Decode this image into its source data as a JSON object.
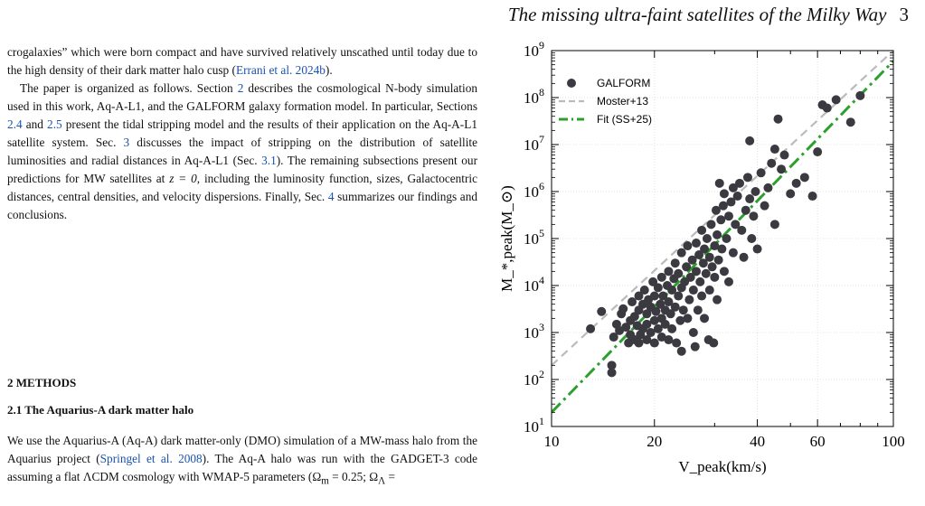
{
  "header": {
    "title": "The missing ultra-faint satellites of the Milky Way",
    "page": "3"
  },
  "text": {
    "p1_parts": [
      "crogalaxies” which were born compact and have survived relatively unscathed until today due to the high density of their dark matter halo cusp (",
      "Errani et al. 2024b",
      ")."
    ],
    "p2_parts": [
      "The paper is organized as follows. Section ",
      "2",
      " describes the cosmological N-body simulation used in this work, Aq-A-L1, and the GALFORM galaxy formation model. In particular, Sections ",
      "2.4",
      " and ",
      "2.5",
      " present the tidal stripping model and the results of their application on the Aq-A-L1 satellite system. Sec. ",
      "3",
      " discusses the impact of stripping on the distribution of satellite luminosities and radial distances in Aq-A-L1 (Sec. ",
      "3.1",
      "). The remaining subsections present our predictions for MW satellites at ",
      "z = 0",
      ", including the luminosity function, sizes, Galactocentric distances, central densities, and velocity dispersions. Finally, Sec. ",
      "4",
      " summarizes our findings and conclusions."
    ],
    "section_heading": "2 METHODS",
    "subsection_heading": "2.1 The Aquarius-A dark matter halo",
    "p3_parts": [
      "We use the Aquarius-A (Aq-A) dark matter-only (DMO) simulation of a MW-mass halo from the Aquarius project (",
      "Springel et al. 2008",
      "). The Aq-A halo was run with the GADGET-3 code assuming a flat ΛCDM cosmology with WMAP-5 parameters (Ω",
      "m",
      " = 0.25; Ω",
      "Λ",
      " ="
    ]
  },
  "chart_data": {
    "type": "scatter",
    "xlabel": "V_peak(km/s)",
    "ylabel": "M_*,peak(M_⊙)",
    "xscale": "log",
    "yscale": "log",
    "xlim": [
      10,
      100
    ],
    "ylim": [
      10,
      1000000000
    ],
    "x_ticks": [
      10,
      20,
      40,
      60,
      100
    ],
    "y_ticks_exp": [
      1,
      2,
      3,
      4,
      5,
      6,
      7,
      8,
      9
    ],
    "grid": true,
    "legend_position": "top-left",
    "colors": {
      "points": "#3a3a40",
      "moster": "#bbbbbb",
      "fit": "#2ca02c"
    },
    "series": [
      {
        "name": "GALFORM",
        "kind": "points",
        "points": [
          [
            13.0,
            1200
          ],
          [
            14.0,
            2800
          ],
          [
            15.0,
            200
          ],
          [
            15.0,
            140
          ],
          [
            15.2,
            800
          ],
          [
            15.5,
            1500
          ],
          [
            15.8,
            1100
          ],
          [
            16.0,
            2500
          ],
          [
            16.2,
            3200
          ],
          [
            16.5,
            1300
          ],
          [
            16.8,
            600
          ],
          [
            17.0,
            900
          ],
          [
            17.0,
            1800
          ],
          [
            17.2,
            4500
          ],
          [
            17.5,
            700
          ],
          [
            17.5,
            2200
          ],
          [
            17.8,
            1400
          ],
          [
            18.0,
            600
          ],
          [
            18.0,
            3000
          ],
          [
            18.0,
            6000
          ],
          [
            18.2,
            900
          ],
          [
            18.5,
            1200
          ],
          [
            18.5,
            4000
          ],
          [
            18.7,
            8000
          ],
          [
            19.0,
            700
          ],
          [
            19.0,
            1500
          ],
          [
            19.0,
            2500
          ],
          [
            19.2,
            5000
          ],
          [
            19.5,
            1000
          ],
          [
            19.5,
            3500
          ],
          [
            19.8,
            12000
          ],
          [
            20.0,
            600
          ],
          [
            20.0,
            1800
          ],
          [
            20.0,
            6000
          ],
          [
            20.2,
            2800
          ],
          [
            20.5,
            1200
          ],
          [
            20.5,
            9000
          ],
          [
            20.8,
            4000
          ],
          [
            21.0,
            800
          ],
          [
            21.0,
            2000
          ],
          [
            21.0,
            15000
          ],
          [
            21.2,
            6000
          ],
          [
            21.5,
            1500
          ],
          [
            21.5,
            3000
          ],
          [
            21.8,
            10000
          ],
          [
            22.0,
            700
          ],
          [
            22.0,
            4500
          ],
          [
            22.0,
            20000
          ],
          [
            22.3,
            2500
          ],
          [
            22.5,
            8000
          ],
          [
            22.5,
            1200
          ],
          [
            22.8,
            14000
          ],
          [
            23.0,
            3500
          ],
          [
            23.0,
            30000
          ],
          [
            23.2,
            600
          ],
          [
            23.5,
            6000
          ],
          [
            23.5,
            18000
          ],
          [
            23.8,
            1800
          ],
          [
            24.0,
            400
          ],
          [
            24.0,
            9000
          ],
          [
            24.0,
            50000
          ],
          [
            24.3,
            3000
          ],
          [
            24.5,
            12000
          ],
          [
            24.8,
            25000
          ],
          [
            25.0,
            2000
          ],
          [
            25.0,
            70000
          ],
          [
            25.3,
            5000
          ],
          [
            25.5,
            15000
          ],
          [
            25.8,
            35000
          ],
          [
            26.0,
            1000
          ],
          [
            26.0,
            8000
          ],
          [
            26.3,
            500
          ],
          [
            26.5,
            20000
          ],
          [
            26.5,
            80000
          ],
          [
            26.8,
            3000
          ],
          [
            27.0,
            45000
          ],
          [
            27.2,
            12000
          ],
          [
            27.5,
            6000
          ],
          [
            27.5,
            150000
          ],
          [
            27.8,
            30000
          ],
          [
            28.0,
            2000
          ],
          [
            28.0,
            60000
          ],
          [
            28.3,
            18000
          ],
          [
            28.5,
            100000
          ],
          [
            28.8,
            700
          ],
          [
            29.0,
            40000
          ],
          [
            29.0,
            8000
          ],
          [
            29.3,
            200000
          ],
          [
            29.5,
            25000
          ],
          [
            29.8,
            600
          ],
          [
            30.0,
            70000
          ],
          [
            30.0,
            15000
          ],
          [
            30.3,
            400000
          ],
          [
            30.5,
            5000
          ],
          [
            30.5,
            120000
          ],
          [
            30.8,
            35000
          ],
          [
            31.0,
            1500000
          ],
          [
            31.3,
            250000
          ],
          [
            31.5,
            60000
          ],
          [
            31.8,
            500000
          ],
          [
            32.0,
            20000
          ],
          [
            32.0,
            900000
          ],
          [
            32.5,
            100000
          ],
          [
            33.0,
            300000
          ],
          [
            33.0,
            12000
          ],
          [
            33.5,
            600000
          ],
          [
            34.0,
            1200000
          ],
          [
            34.0,
            50000
          ],
          [
            34.5,
            200000
          ],
          [
            35.0,
            800000
          ],
          [
            35.5,
            1500000
          ],
          [
            36.0,
            150000
          ],
          [
            36.5,
            40000
          ],
          [
            37.0,
            400000
          ],
          [
            37.5,
            2000000
          ],
          [
            38.0,
            700000
          ],
          [
            38.5,
            100000
          ],
          [
            39.0,
            300000
          ],
          [
            39.5,
            1000000
          ],
          [
            40.0,
            60000
          ],
          [
            41.0,
            2500000
          ],
          [
            42.0,
            500000
          ],
          [
            43.0,
            1200000
          ],
          [
            44.0,
            4000000
          ],
          [
            45.0,
            200000
          ],
          [
            46.0,
            35000000
          ],
          [
            47.0,
            3000000
          ],
          [
            48.0,
            6000000
          ],
          [
            50.0,
            900000
          ],
          [
            52.0,
            1500000
          ],
          [
            55.0,
            2000000
          ],
          [
            58.0,
            800000
          ],
          [
            60.0,
            7000000
          ],
          [
            62.0,
            70000000
          ],
          [
            64.0,
            60000000
          ],
          [
            68.0,
            90000000
          ],
          [
            75.0,
            30000000
          ],
          [
            80.0,
            110000000
          ],
          [
            45.0,
            8000000
          ],
          [
            38.0,
            12000000
          ]
        ]
      },
      {
        "name": "Moster+13",
        "kind": "line",
        "style": "dashed",
        "points": [
          [
            10,
            200
          ],
          [
            100,
            1000000000
          ]
        ]
      },
      {
        "name": "Fit (SS+25)",
        "kind": "line",
        "style": "dashdot",
        "points": [
          [
            10,
            20
          ],
          [
            100,
            600000000
          ]
        ]
      }
    ]
  }
}
